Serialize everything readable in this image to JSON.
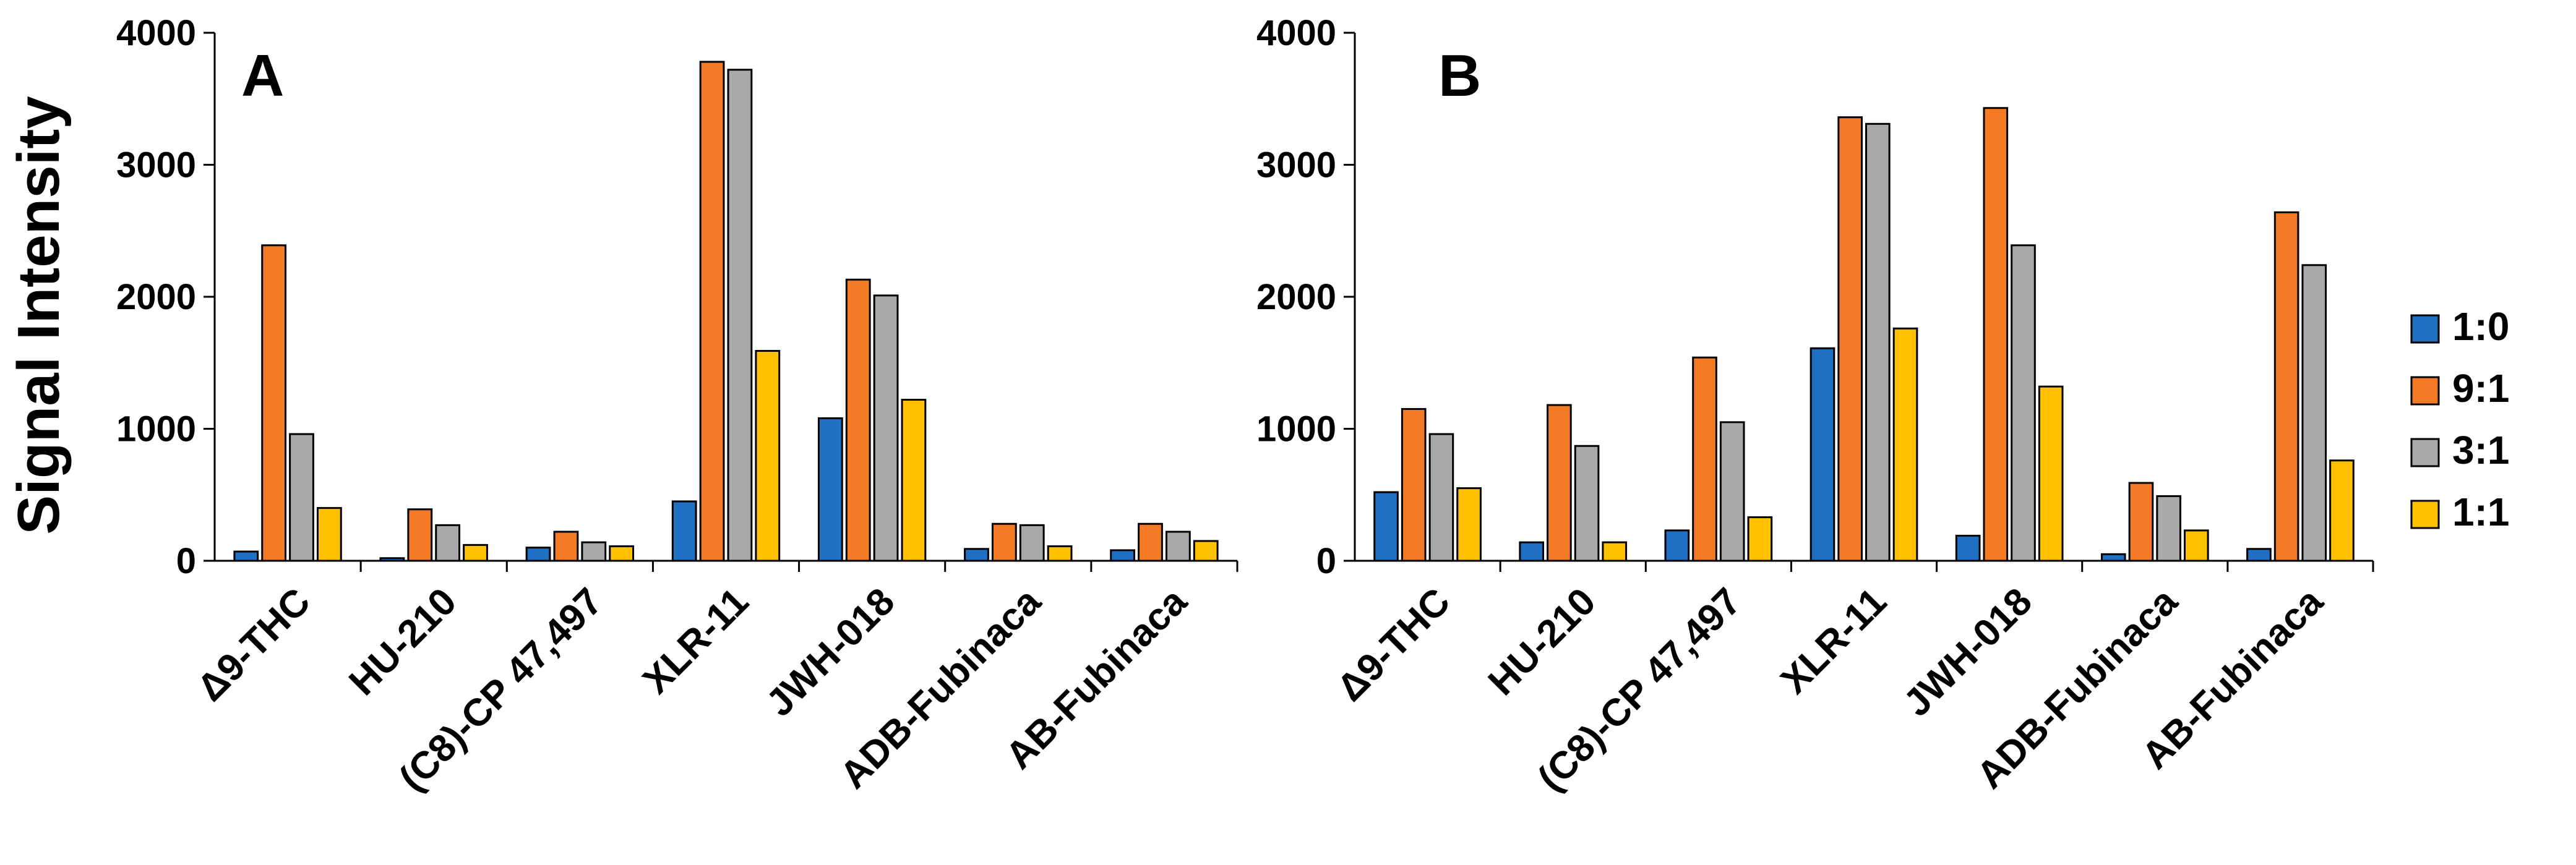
{
  "figure": {
    "ylabel": "Signal Intensity",
    "ylim": [
      0,
      4000
    ],
    "yticks": [
      "0",
      "1000",
      "2000",
      "3000",
      "4000"
    ],
    "categories": [
      "Δ9-THC",
      "HU-210",
      "(C8)-CP 47,497",
      "XLR-11",
      "JWH-018",
      "ADB-Fubinaca",
      "AB-Fubinaca"
    ],
    "legend": [
      {
        "name": "1:0",
        "color": "#1f6fc4"
      },
      {
        "name": "9:1",
        "color": "#f47a26"
      },
      {
        "name": "3:1",
        "color": "#a9a9a9"
      },
      {
        "name": "1:1",
        "color": "#ffc000"
      }
    ]
  },
  "chart_data": [
    {
      "type": "bar",
      "title": "A",
      "xlabel": "",
      "ylabel": "Signal Intensity",
      "ylim": [
        0,
        4000
      ],
      "categories": [
        "Δ9-THC",
        "HU-210",
        "(C8)-CP 47,497",
        "XLR-11",
        "JWH-018",
        "ADB-Fubinaca",
        "AB-Fubinaca"
      ],
      "series": [
        {
          "name": "1:0",
          "values": [
            70,
            20,
            100,
            450,
            1080,
            90,
            80
          ]
        },
        {
          "name": "9:1",
          "values": [
            2390,
            390,
            220,
            3780,
            2130,
            280,
            280
          ]
        },
        {
          "name": "3:1",
          "values": [
            960,
            270,
            140,
            3720,
            2010,
            270,
            220
          ]
        },
        {
          "name": "1:1",
          "values": [
            400,
            120,
            110,
            1590,
            1220,
            110,
            150
          ]
        }
      ]
    },
    {
      "type": "bar",
      "title": "B",
      "xlabel": "",
      "ylabel": "",
      "ylim": [
        0,
        4000
      ],
      "categories": [
        "Δ9-THC",
        "HU-210",
        "(C8)-CP 47,497",
        "XLR-11",
        "JWH-018",
        "ADB-Fubinaca",
        "AB-Fubinaca"
      ],
      "series": [
        {
          "name": "1:0",
          "values": [
            520,
            140,
            230,
            1610,
            190,
            50,
            90
          ]
        },
        {
          "name": "9:1",
          "values": [
            1150,
            1180,
            1540,
            3360,
            3430,
            590,
            2640
          ]
        },
        {
          "name": "3:1",
          "values": [
            960,
            870,
            1050,
            3310,
            2390,
            490,
            2240
          ]
        },
        {
          "name": "1:1",
          "values": [
            550,
            140,
            330,
            1760,
            1320,
            230,
            760
          ]
        }
      ]
    }
  ]
}
